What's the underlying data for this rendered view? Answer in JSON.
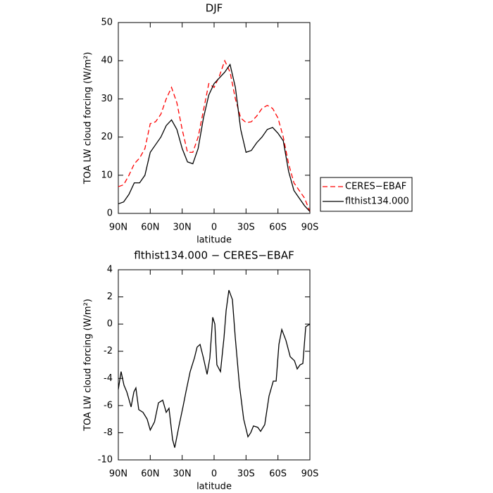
{
  "chart_data": [
    {
      "type": "line",
      "title": "DJF",
      "xlabel": "latitude",
      "ylabel": "TOA LW cloud forcing (W/m²)",
      "x": [
        90,
        85,
        80,
        75,
        70,
        65,
        60,
        55,
        50,
        45,
        40,
        35,
        30,
        25,
        20,
        15,
        10,
        5,
        0,
        -5,
        -10,
        -15,
        -20,
        -25,
        -30,
        -35,
        -40,
        -45,
        -50,
        -55,
        -60,
        -65,
        -70,
        -75,
        -80,
        -85,
        -90
      ],
      "series": [
        {
          "name": "CERES−EBAF",
          "color": "#ff0000",
          "dash": true,
          "values": [
            7,
            7.5,
            10,
            13,
            14.5,
            17,
            23.5,
            24,
            26,
            30,
            33,
            29,
            22,
            16,
            16,
            20,
            27,
            34,
            33,
            36,
            40,
            37,
            30,
            25,
            23.8,
            24,
            25.5,
            27.5,
            28.3,
            27.5,
            25,
            20,
            13,
            8,
            6,
            4,
            0.5
          ]
        },
        {
          "name": "flthist134.000",
          "color": "#000000",
          "dash": false,
          "values": [
            2.5,
            3,
            5,
            8,
            8,
            10,
            16,
            18,
            20,
            23,
            24.5,
            22,
            17,
            13.5,
            13,
            17,
            25,
            31,
            34,
            35.5,
            37,
            39,
            33,
            22,
            16,
            16.5,
            18.5,
            20,
            22,
            22.5,
            21,
            19,
            11,
            6,
            4,
            2,
            0.5
          ]
        }
      ],
      "xlim": [
        90,
        -90
      ],
      "xticks": [
        {
          "value": 90,
          "label": "90N"
        },
        {
          "value": 60,
          "label": "60N"
        },
        {
          "value": 30,
          "label": "30N"
        },
        0,
        {
          "value": -30,
          "label": "30S"
        },
        {
          "value": -60,
          "label": "60S"
        },
        {
          "value": -90,
          "label": "90S"
        }
      ],
      "ylim": [
        0,
        50
      ],
      "yticks": [
        0,
        10,
        20,
        30,
        40,
        50
      ],
      "legend": "outside-right"
    },
    {
      "type": "line",
      "title": "flthist134.000 − CERES−EBAF",
      "xlabel": "latitude",
      "ylabel": "TOA LW cloud forcing (W/m²)",
      "x": [
        90,
        87.4,
        84.7,
        82,
        78,
        75.4,
        73.5,
        70.8,
        66.8,
        62.9,
        60,
        56,
        52.3,
        48.3,
        45,
        42.4,
        39,
        37,
        33,
        29,
        26.5,
        22.5,
        18.5,
        16,
        13.2,
        10,
        6.6,
        4,
        1.3,
        -0.7,
        -2.6,
        -6,
        -9.3,
        -11.3,
        -13.9,
        -17.2,
        -19.9,
        -23.8,
        -27.8,
        -31.8,
        -34.4,
        -37,
        -41,
        -43.7,
        -47.6,
        -51.6,
        -55.6,
        -58.3,
        -60.9,
        -63.6,
        -67.5,
        -71.5,
        -75.5,
        -78.1,
        -80.8,
        -83.4,
        -86.1,
        -90
      ],
      "series": [
        {
          "color": "#000000",
          "dash": false,
          "values": [
            -4.8,
            -3.5,
            -4.5,
            -5,
            -6.1,
            -5,
            -4.7,
            -6.3,
            -6.5,
            -7,
            -7.8,
            -7.2,
            -5.8,
            -5.6,
            -6.5,
            -6.2,
            -8.5,
            -9.1,
            -7.5,
            -6,
            -5,
            -3.5,
            -2.5,
            -1.7,
            -1.5,
            -2.5,
            -3.7,
            -2.5,
            0.5,
            0,
            -3,
            -3.5,
            -1,
            1,
            2.5,
            1.8,
            -1,
            -4.5,
            -7,
            -8.3,
            -8,
            -7.5,
            -7.6,
            -7.9,
            -7.4,
            -5.3,
            -4.2,
            -4.2,
            -1.5,
            -0.4,
            -1.2,
            -2.4,
            -2.7,
            -3.3,
            -3,
            -2.9,
            -0.2,
            0
          ]
        }
      ],
      "xlim": [
        90,
        -90
      ],
      "xticks": [
        {
          "value": 90,
          "label": "90N"
        },
        {
          "value": 60,
          "label": "60N"
        },
        {
          "value": 30,
          "label": "30N"
        },
        0,
        {
          "value": -30,
          "label": "30S"
        },
        {
          "value": -60,
          "label": "60S"
        },
        {
          "value": -90,
          "label": "90S"
        }
      ],
      "ylim": [
        -10,
        4
      ],
      "yticks": [
        -10,
        -8,
        -6,
        -4,
        -2,
        0,
        2,
        4
      ]
    }
  ]
}
